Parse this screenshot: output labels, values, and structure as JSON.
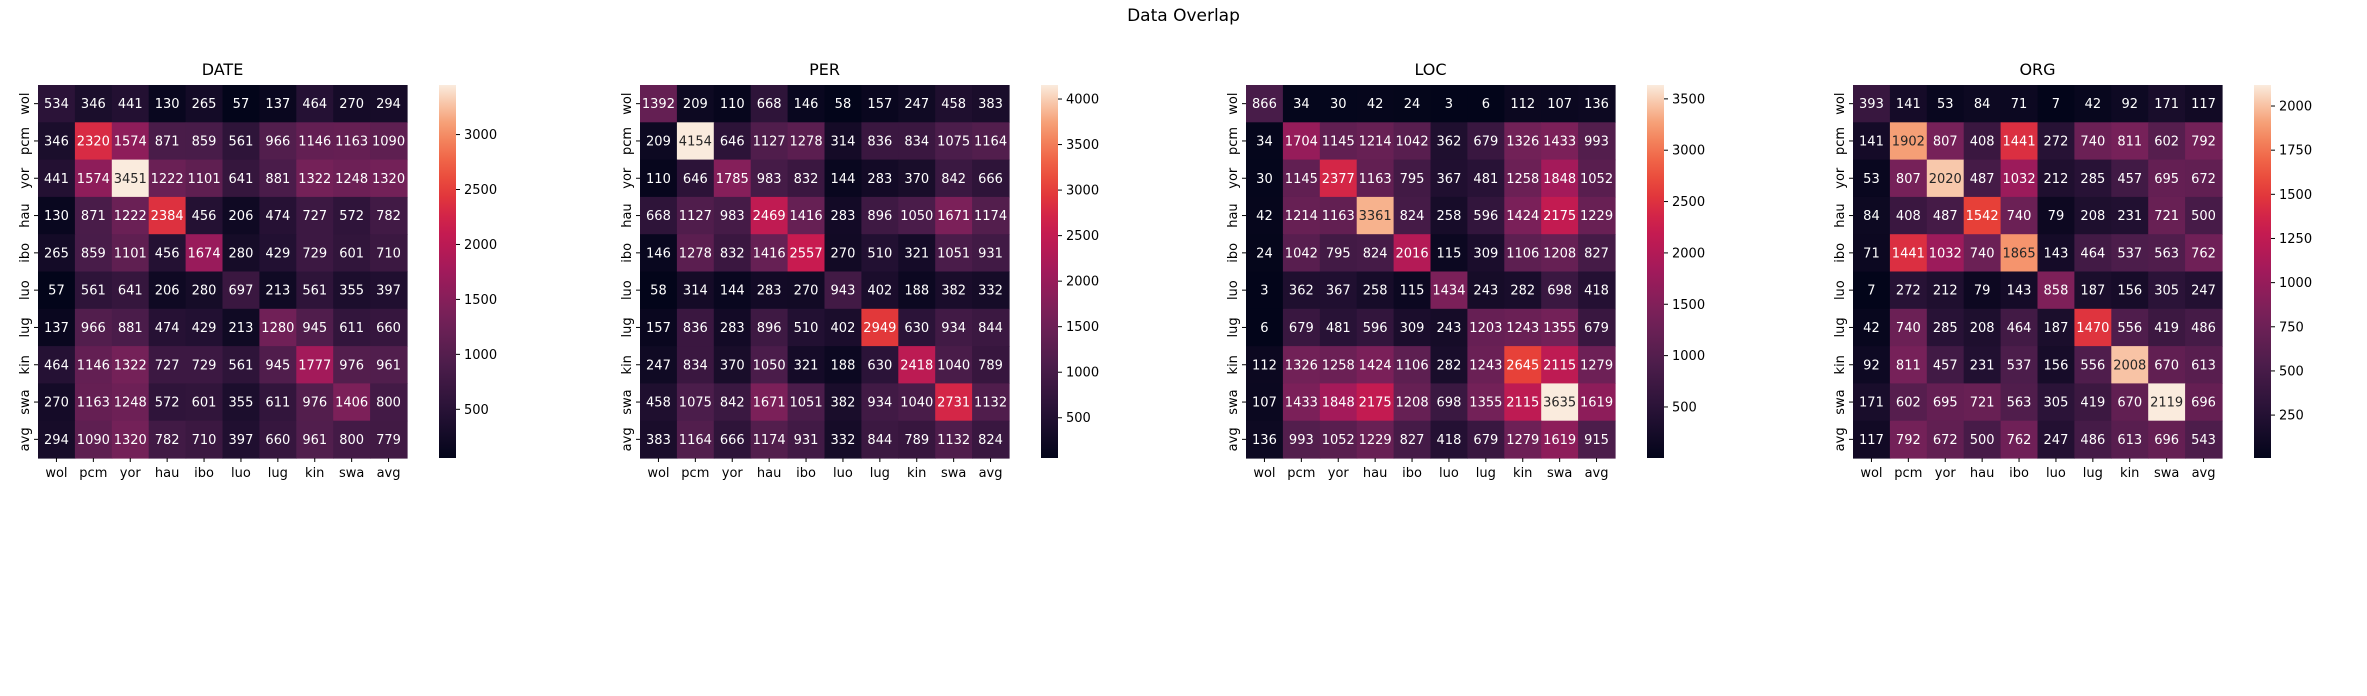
{
  "figure": {
    "title": "Data Overlap"
  },
  "chart_data": [
    {
      "type": "heatmap",
      "title": "DATE",
      "xlabel": "",
      "ylabel": "",
      "rows": [
        "wol",
        "pcm",
        "yor",
        "hau",
        "ibo",
        "luo",
        "lug",
        "kin",
        "swa",
        "avg"
      ],
      "cols": [
        "wol",
        "pcm",
        "yor",
        "hau",
        "ibo",
        "luo",
        "lug",
        "kin",
        "swa",
        "avg"
      ],
      "values": [
        [
          534,
          346,
          441,
          130,
          265,
          57,
          137,
          464,
          270,
          294
        ],
        [
          346,
          2320,
          1574,
          871,
          859,
          561,
          966,
          1146,
          1163,
          1090
        ],
        [
          441,
          1574,
          3451,
          1222,
          1101,
          641,
          881,
          1322,
          1248,
          1320
        ],
        [
          130,
          871,
          1222,
          2384,
          456,
          206,
          474,
          727,
          572,
          782
        ],
        [
          265,
          859,
          1101,
          456,
          1674,
          280,
          429,
          729,
          601,
          710
        ],
        [
          57,
          561,
          641,
          206,
          280,
          697,
          213,
          561,
          355,
          397
        ],
        [
          137,
          966,
          881,
          474,
          429,
          213,
          1280,
          945,
          611,
          660
        ],
        [
          464,
          1146,
          1322,
          727,
          729,
          561,
          945,
          1777,
          976,
          961
        ],
        [
          270,
          1163,
          1248,
          572,
          601,
          355,
          611,
          976,
          1406,
          800
        ],
        [
          294,
          1090,
          1320,
          782,
          710,
          397,
          660,
          961,
          800,
          779
        ]
      ],
      "colorbar": {
        "colormap": "rocket",
        "vmin": 57,
        "vmax": 3451,
        "ticks": [
          500,
          1000,
          1500,
          2000,
          2500,
          3000
        ]
      }
    },
    {
      "type": "heatmap",
      "title": "PER",
      "xlabel": "",
      "ylabel": "",
      "rows": [
        "wol",
        "pcm",
        "yor",
        "hau",
        "ibo",
        "luo",
        "lug",
        "kin",
        "swa",
        "avg"
      ],
      "cols": [
        "wol",
        "pcm",
        "yor",
        "hau",
        "ibo",
        "luo",
        "lug",
        "kin",
        "swa",
        "avg"
      ],
      "values": [
        [
          1392,
          209,
          110,
          668,
          146,
          58,
          157,
          247,
          458,
          383
        ],
        [
          209,
          4154,
          646,
          1127,
          1278,
          314,
          836,
          834,
          1075,
          1164
        ],
        [
          110,
          646,
          1785,
          983,
          832,
          144,
          283,
          370,
          842,
          666
        ],
        [
          668,
          1127,
          983,
          2469,
          1416,
          283,
          896,
          1050,
          1671,
          1174
        ],
        [
          146,
          1278,
          832,
          1416,
          2557,
          270,
          510,
          321,
          1051,
          931
        ],
        [
          58,
          314,
          144,
          283,
          270,
          943,
          402,
          188,
          382,
          332
        ],
        [
          157,
          836,
          283,
          896,
          510,
          402,
          2949,
          630,
          934,
          844
        ],
        [
          247,
          834,
          370,
          1050,
          321,
          188,
          630,
          2418,
          1040,
          789
        ],
        [
          458,
          1075,
          842,
          1671,
          1051,
          382,
          934,
          1040,
          2731,
          1132
        ],
        [
          383,
          1164,
          666,
          1174,
          931,
          332,
          844,
          789,
          1132,
          824
        ]
      ],
      "colorbar": {
        "colormap": "rocket",
        "vmin": 58,
        "vmax": 4154,
        "ticks": [
          500,
          1000,
          1500,
          2000,
          2500,
          3000,
          3500,
          4000
        ]
      }
    },
    {
      "type": "heatmap",
      "title": "LOC",
      "xlabel": "",
      "ylabel": "",
      "rows": [
        "wol",
        "pcm",
        "yor",
        "hau",
        "ibo",
        "luo",
        "lug",
        "kin",
        "swa",
        "avg"
      ],
      "cols": [
        "wol",
        "pcm",
        "yor",
        "hau",
        "ibo",
        "luo",
        "lug",
        "kin",
        "swa",
        "avg"
      ],
      "values": [
        [
          866,
          34,
          30,
          42,
          24,
          3,
          6,
          112,
          107,
          136
        ],
        [
          34,
          1704,
          1145,
          1214,
          1042,
          362,
          679,
          1326,
          1433,
          993
        ],
        [
          30,
          1145,
          2377,
          1163,
          795,
          367,
          481,
          1258,
          1848,
          1052
        ],
        [
          42,
          1214,
          1163,
          3361,
          824,
          258,
          596,
          1424,
          2175,
          1229
        ],
        [
          24,
          1042,
          795,
          824,
          2016,
          115,
          309,
          1106,
          1208,
          827
        ],
        [
          3,
          362,
          367,
          258,
          115,
          1434,
          243,
          282,
          698,
          418
        ],
        [
          6,
          679,
          481,
          596,
          309,
          243,
          1203,
          1243,
          1355,
          679
        ],
        [
          112,
          1326,
          1258,
          1424,
          1106,
          282,
          1243,
          2645,
          2115,
          1279
        ],
        [
          107,
          1433,
          1848,
          2175,
          1208,
          698,
          1355,
          2115,
          3635,
          1619
        ],
        [
          136,
          993,
          1052,
          1229,
          827,
          418,
          679,
          1279,
          1619,
          915
        ]
      ],
      "colorbar": {
        "colormap": "rocket",
        "vmin": 3,
        "vmax": 3635,
        "ticks": [
          500,
          1000,
          1500,
          2000,
          2500,
          3000,
          3500
        ]
      }
    },
    {
      "type": "heatmap",
      "title": "ORG",
      "xlabel": "",
      "ylabel": "",
      "rows": [
        "wol",
        "pcm",
        "yor",
        "hau",
        "ibo",
        "luo",
        "lug",
        "kin",
        "swa",
        "avg"
      ],
      "cols": [
        "wol",
        "pcm",
        "yor",
        "hau",
        "ibo",
        "luo",
        "lug",
        "kin",
        "swa",
        "avg"
      ],
      "values": [
        [
          393,
          141,
          53,
          84,
          71,
          7,
          42,
          92,
          171,
          117
        ],
        [
          141,
          1902,
          807,
          408,
          1441,
          272,
          740,
          811,
          602,
          792
        ],
        [
          53,
          807,
          2020,
          487,
          1032,
          212,
          285,
          457,
          695,
          672
        ],
        [
          84,
          408,
          487,
          1542,
          740,
          79,
          208,
          231,
          721,
          500
        ],
        [
          71,
          1441,
          1032,
          740,
          1865,
          143,
          464,
          537,
          563,
          762
        ],
        [
          7,
          272,
          212,
          79,
          143,
          858,
          187,
          156,
          305,
          247
        ],
        [
          42,
          740,
          285,
          208,
          464,
          187,
          1470,
          556,
          419,
          486
        ],
        [
          92,
          811,
          457,
          231,
          537,
          156,
          556,
          2008,
          670,
          613
        ],
        [
          171,
          602,
          695,
          721,
          563,
          305,
          419,
          670,
          2119,
          696
        ],
        [
          117,
          792,
          672,
          500,
          762,
          247,
          486,
          613,
          696,
          543
        ]
      ],
      "colorbar": {
        "colormap": "rocket",
        "vmin": 7,
        "vmax": 2119,
        "ticks": [
          250,
          500,
          750,
          1000,
          1250,
          1500,
          1750,
          2000
        ]
      }
    }
  ]
}
